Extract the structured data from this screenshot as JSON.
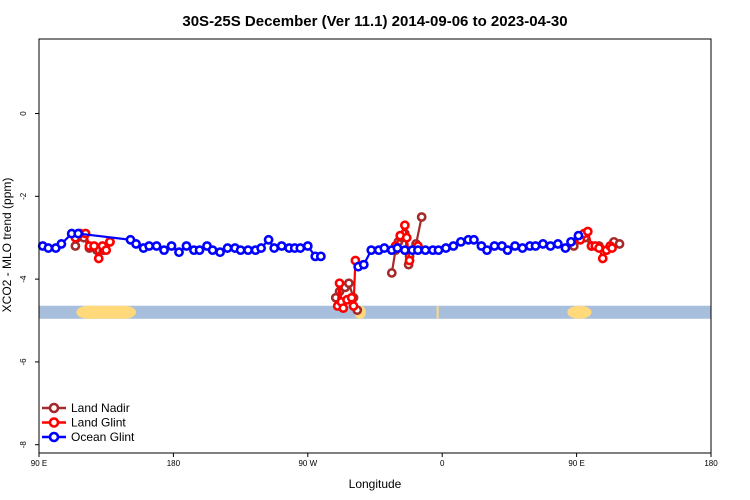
{
  "chart_data": {
    "type": "line",
    "title": "30S-25S December (Ver 11.1)   2014-09-06 to 2023-04-30",
    "xlabel": "Longitude",
    "ylabel": "XCO2 - MLO trend (ppm)",
    "xlim": [
      90,
      450
    ],
    "ylim": [
      -8.2,
      1.8
    ],
    "x_ticks": [
      {
        "value": 90,
        "label": "90 E"
      },
      {
        "value": 162,
        "label": "180"
      },
      {
        "value": 234,
        "label": "90 W"
      },
      {
        "value": 306,
        "label": "0"
      },
      {
        "value": 378,
        "label": "90 E"
      },
      {
        "value": 450,
        "label": "180"
      }
    ],
    "y_ticks": [
      {
        "value": 0,
        "label": "0"
      },
      {
        "value": -2,
        "label": "-2"
      },
      {
        "value": -4,
        "label": "-4"
      },
      {
        "value": -6,
        "label": "-6"
      },
      {
        "value": -8,
        "label": "-8"
      }
    ],
    "grid": false,
    "legend_position": "bottom-left",
    "band": {
      "y": -4.8,
      "color": "#a7bedc",
      "land_color": "#ffd97a",
      "land_segments": [
        [
          110,
          142
        ],
        [
          259,
          265
        ],
        [
          303,
          303
        ],
        [
          373,
          386
        ]
      ]
    },
    "series": [
      {
        "name": "Land Nadir",
        "color": "#a52a2a",
        "segments": [
          [
            [
              109.5,
              -3.2
            ],
            [
              110.5,
              -3.0
            ],
            [
              114,
              -3.0
            ],
            [
              117,
              -3.25
            ],
            [
              121,
              -3.3
            ],
            [
              124.5,
              -3.3
            ],
            [
              128,
              -3.1
            ]
          ],
          [
            [
              249,
              -4.45
            ],
            [
              251,
              -4.3
            ],
            [
              254,
              -4.2
            ],
            [
              256,
              -4.1
            ],
            [
              258.5,
              -4.45
            ],
            [
              260.5,
              -4.75
            ]
          ],
          [
            [
              279,
              -3.85
            ],
            [
              281,
              -3.3
            ],
            [
              282.5,
              -3.1
            ],
            [
              284.5,
              -3.0
            ],
            [
              286,
              -2.9
            ],
            [
              288,
              -3.65
            ],
            [
              288.5,
              -3.45
            ]
          ],
          [
            [
              292,
              -3.15
            ],
            [
              295,
              -2.5
            ]
          ],
          [
            [
              376.5,
              -3.2
            ],
            [
              379,
              -3.0
            ],
            [
              382.5,
              -3.0
            ],
            [
              386,
              -3.2
            ],
            [
              390,
              -3.2
            ],
            [
              394,
              -3.3
            ],
            [
              398,
              -3.1
            ],
            [
              401,
              -3.15
            ]
          ]
        ]
      },
      {
        "name": "Land Glint",
        "color": "#ff0000",
        "segments": [
          [
            [
              109.5,
              -3.0
            ],
            [
              112,
              -2.9
            ],
            [
              115,
              -2.9
            ],
            [
              117,
              -3.2
            ],
            [
              119.5,
              -3.2
            ],
            [
              122,
              -3.5
            ],
            [
              124,
              -3.2
            ],
            [
              126,
              -3.3
            ],
            [
              128,
              -3.1
            ]
          ],
          [
            [
              250,
              -4.65
            ],
            [
              251,
              -4.1
            ],
            [
              252,
              -4.55
            ],
            [
              253,
              -4.7
            ],
            [
              255,
              -4.5
            ],
            [
              257.5,
              -4.45
            ],
            [
              258.5,
              -4.65
            ],
            [
              259.5,
              -3.55
            ]
          ],
          [
            [
              281,
              -3.2
            ],
            [
              283.5,
              -2.95
            ],
            [
              286,
              -2.7
            ],
            [
              287,
              -3.0
            ],
            [
              288.5,
              -3.55
            ]
          ],
          [
            [
              293,
              -3.2
            ]
          ],
          [
            [
              380,
              -3.05
            ],
            [
              382,
              -2.9
            ],
            [
              384,
              -2.85
            ],
            [
              386,
              -3.2
            ],
            [
              388,
              -3.2
            ],
            [
              390,
              -3.25
            ],
            [
              392,
              -3.5
            ],
            [
              394,
              -3.3
            ],
            [
              396,
              -3.2
            ],
            [
              397,
              -3.25
            ]
          ]
        ]
      },
      {
        "name": "Ocean Glint",
        "color": "#0000ff",
        "segments": [
          [
            [
              92,
              -3.2
            ],
            [
              95,
              -3.25
            ],
            [
              99,
              -3.25
            ],
            [
              102,
              -3.15
            ],
            [
              107.5,
              -2.9
            ],
            [
              111,
              -2.9
            ],
            [
              139,
              -3.05
            ],
            [
              142,
              -3.15
            ],
            [
              146,
              -3.25
            ],
            [
              149,
              -3.2
            ],
            [
              153,
              -3.2
            ],
            [
              157,
              -3.3
            ],
            [
              161,
              -3.2
            ],
            [
              165,
              -3.35
            ],
            [
              169,
              -3.2
            ],
            [
              173,
              -3.3
            ],
            [
              176,
              -3.3
            ],
            [
              180,
              -3.2
            ],
            [
              183,
              -3.3
            ],
            [
              187,
              -3.35
            ],
            [
              191,
              -3.25
            ],
            [
              195,
              -3.25
            ],
            [
              198,
              -3.3
            ],
            [
              202,
              -3.3
            ],
            [
              206,
              -3.3
            ],
            [
              209,
              -3.25
            ],
            [
              213,
              -3.05
            ],
            [
              216,
              -3.25
            ],
            [
              220,
              -3.2
            ],
            [
              224,
              -3.25
            ],
            [
              227,
              -3.25
            ],
            [
              230,
              -3.25
            ],
            [
              234,
              -3.2
            ],
            [
              238,
              -3.45
            ],
            [
              241,
              -3.45
            ]
          ],
          [
            [
              261,
              -3.7
            ],
            [
              264,
              -3.65
            ],
            [
              268,
              -3.3
            ],
            [
              272,
              -3.3
            ],
            [
              275,
              -3.25
            ],
            [
              279,
              -3.3
            ],
            [
              282,
              -3.25
            ],
            [
              286,
              -3.3
            ],
            [
              290,
              -3.3
            ],
            [
              293,
              -3.3
            ],
            [
              297,
              -3.3
            ],
            [
              301,
              -3.3
            ],
            [
              304,
              -3.3
            ],
            [
              308,
              -3.25
            ],
            [
              312,
              -3.2
            ],
            [
              316,
              -3.1
            ],
            [
              320,
              -3.05
            ],
            [
              323,
              -3.05
            ],
            [
              327,
              -3.2
            ],
            [
              330,
              -3.3
            ],
            [
              334,
              -3.2
            ],
            [
              338,
              -3.2
            ],
            [
              341,
              -3.3
            ],
            [
              345,
              -3.2
            ],
            [
              349,
              -3.25
            ],
            [
              353,
              -3.2
            ],
            [
              356,
              -3.2
            ],
            [
              360,
              -3.15
            ],
            [
              364,
              -3.2
            ],
            [
              368,
              -3.15
            ],
            [
              372,
              -3.25
            ],
            [
              375,
              -3.1
            ],
            [
              379,
              -2.95
            ]
          ]
        ]
      }
    ]
  }
}
